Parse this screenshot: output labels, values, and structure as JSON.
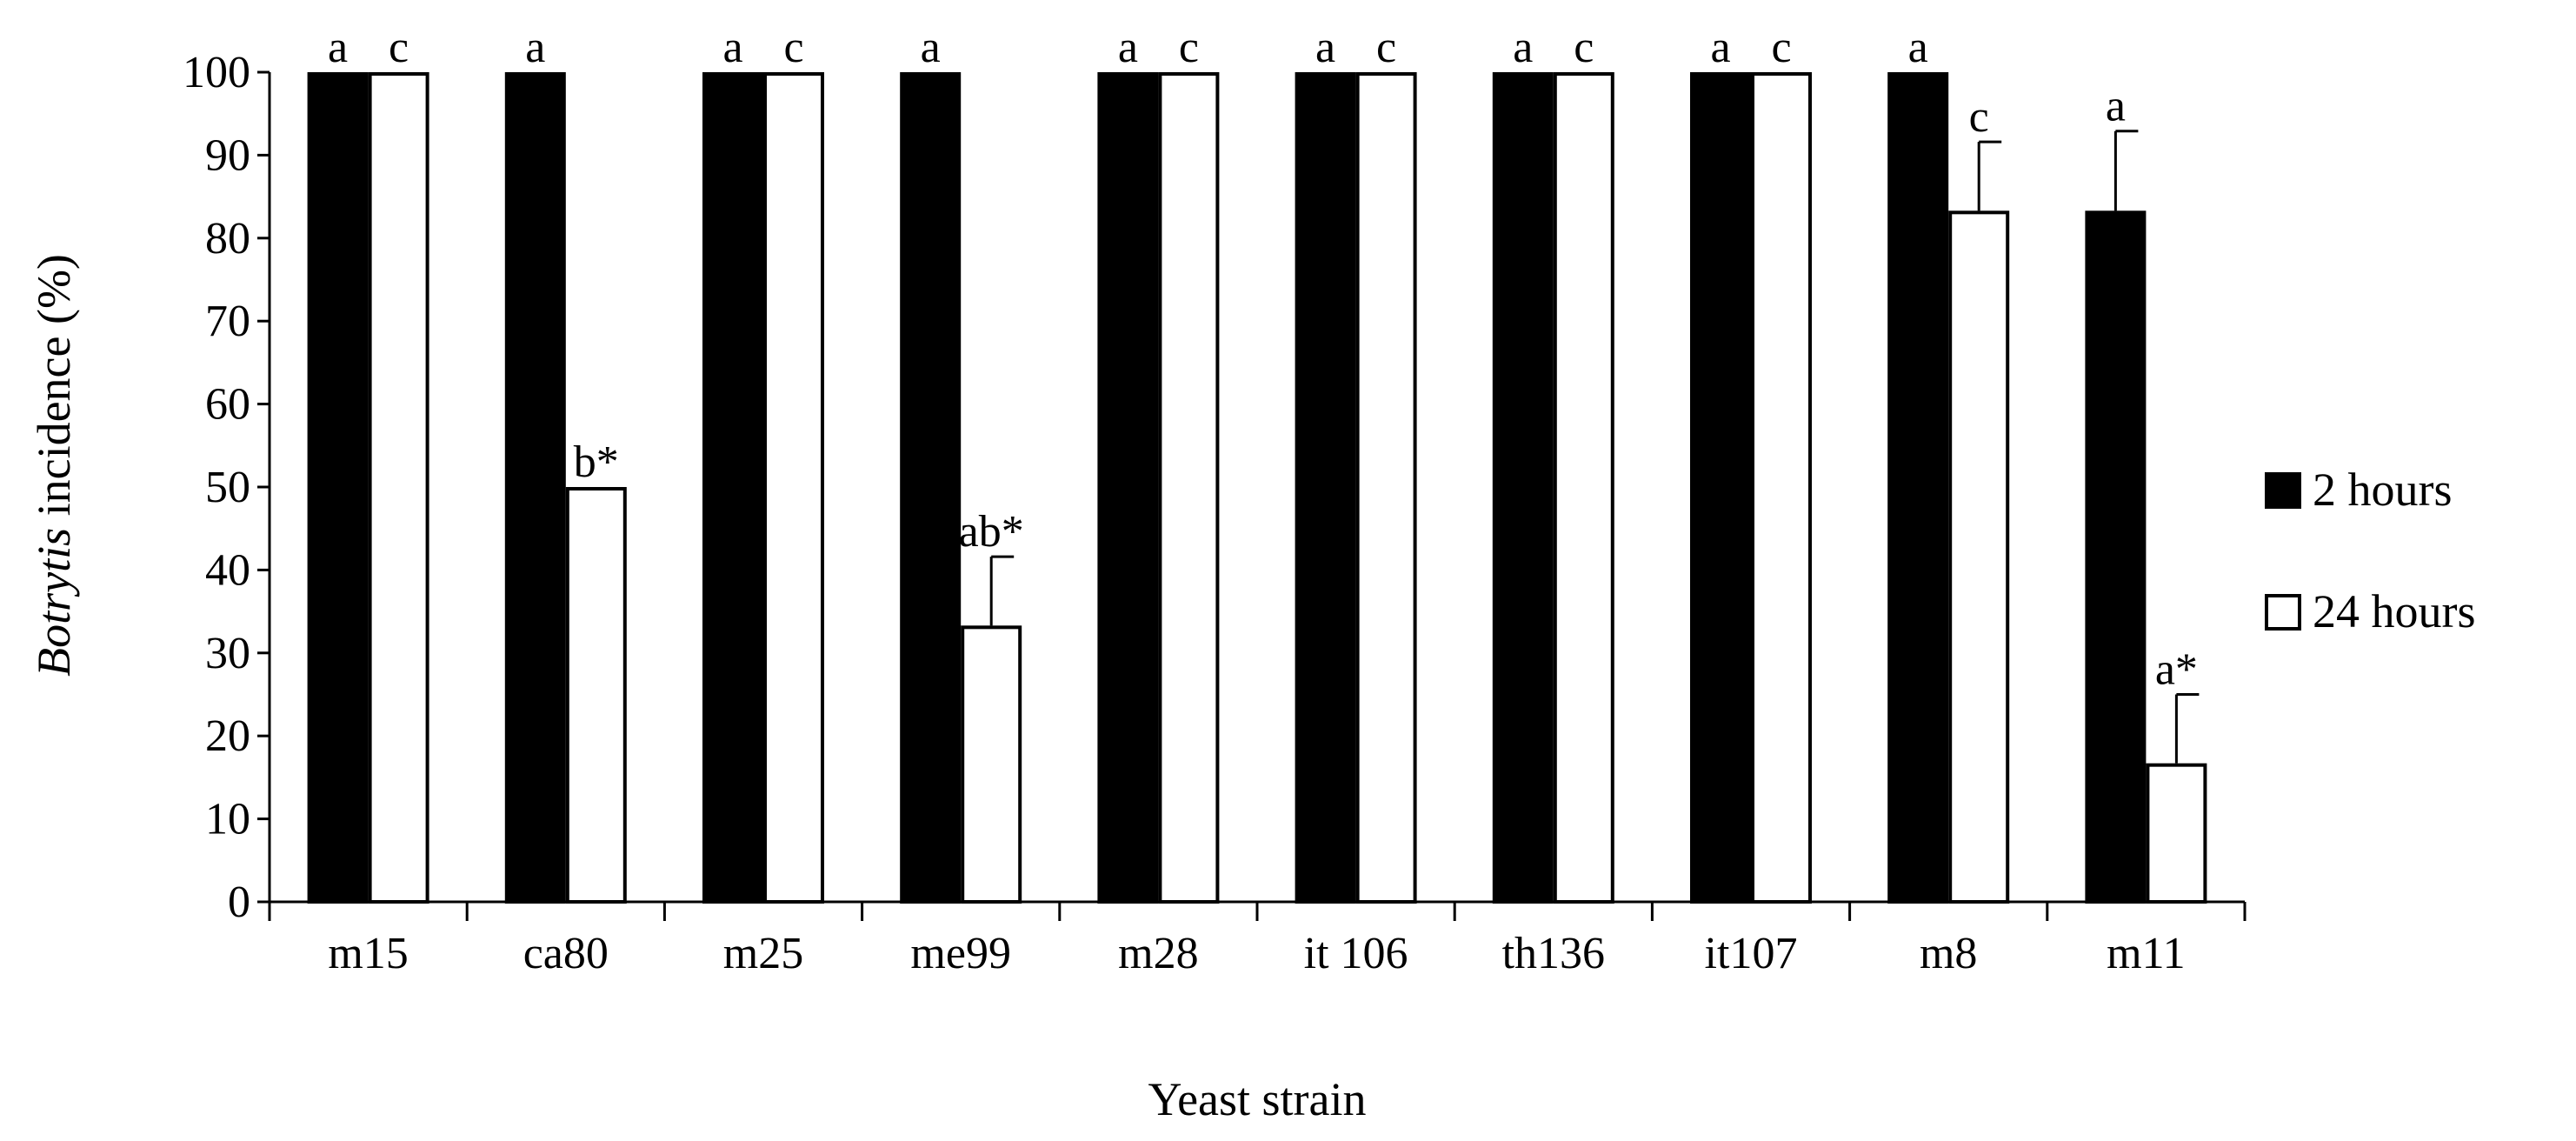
{
  "chart_data": {
    "type": "bar",
    "title": "",
    "xlabel": "Yeast strain",
    "ylabel": {
      "italic_part": "Botrytis",
      "rest": " incidence (%)"
    },
    "ylim": [
      0,
      100
    ],
    "yticks": [
      0,
      10,
      20,
      30,
      40,
      50,
      60,
      70,
      80,
      90,
      100
    ],
    "grid": false,
    "legend_position": "right",
    "categories": [
      "m15",
      "ca80",
      "m25",
      "me99",
      "m28",
      "it 106",
      "th136",
      "it107",
      "m8",
      "m11"
    ],
    "series": [
      {
        "name": "2 hours",
        "color": "#000000",
        "values": [
          100,
          100,
          100,
          100,
          100,
          100,
          100,
          100,
          100,
          83.3
        ],
        "errors": [
          0,
          0,
          0,
          0,
          0,
          0,
          0,
          0,
          0,
          9.6
        ],
        "labels": [
          "a",
          "a",
          "a",
          "a",
          "a",
          "a",
          "a",
          "a",
          "a",
          "a"
        ]
      },
      {
        "name": "24 hours",
        "color": "#ffffff",
        "values": [
          100,
          50,
          100,
          33.3,
          100,
          100,
          100,
          100,
          83.3,
          16.7
        ],
        "errors": [
          0,
          0,
          0,
          8.3,
          0,
          0,
          0,
          0,
          8.3,
          8.3
        ],
        "labels": [
          "c",
          "b*",
          "c",
          "ab*",
          "c",
          "c",
          "c",
          "c",
          "c",
          "a*"
        ]
      }
    ]
  }
}
